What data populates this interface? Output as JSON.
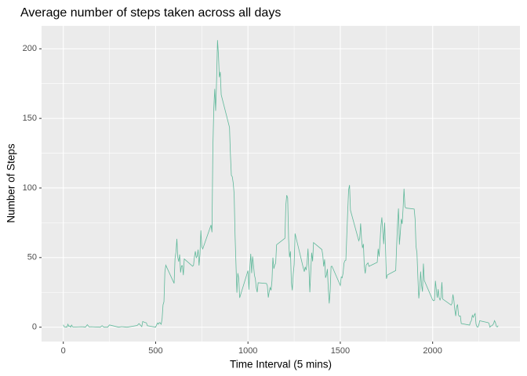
{
  "chart_data": {
    "type": "line",
    "title": "Average number of steps taken across all days",
    "x_label": "Time Interval (5 mins)",
    "y_label": "Number of Steps",
    "color": "#5fb89a",
    "grid": true,
    "xlim": [
      -117.75,
      2472.75
    ],
    "ylim": [
      -10.31,
      216.48
    ],
    "xticks": [
      0,
      500,
      1000,
      1500,
      2000
    ],
    "yticks": [
      0,
      50,
      100,
      150,
      200
    ],
    "xminor_ticks": [
      250,
      750,
      1250,
      1750,
      2250
    ],
    "yminor_ticks": [
      25,
      75,
      125,
      175
    ],
    "x": [
      0,
      5,
      10,
      15,
      20,
      25,
      30,
      35,
      40,
      45,
      50,
      55,
      100,
      110,
      120,
      130,
      140,
      150,
      200,
      210,
      220,
      230,
      240,
      250,
      300,
      315,
      330,
      345,
      400,
      410,
      425,
      430,
      440,
      450,
      455,
      500,
      505,
      510,
      515,
      520,
      525,
      530,
      535,
      540,
      545,
      550,
      555,
      600,
      605,
      610,
      615,
      620,
      625,
      630,
      635,
      640,
      645,
      650,
      655,
      700,
      705,
      710,
      715,
      720,
      725,
      730,
      735,
      740,
      745,
      750,
      755,
      800,
      805,
      810,
      815,
      820,
      825,
      830,
      835,
      840,
      845,
      850,
      855,
      900,
      905,
      910,
      915,
      920,
      925,
      930,
      935,
      940,
      945,
      950,
      955,
      1000,
      1005,
      1010,
      1015,
      1020,
      1025,
      1030,
      1035,
      1040,
      1045,
      1050,
      1055,
      1100,
      1105,
      1110,
      1115,
      1120,
      1125,
      1130,
      1135,
      1140,
      1145,
      1150,
      1155,
      1200,
      1205,
      1210,
      1215,
      1220,
      1225,
      1230,
      1235,
      1240,
      1245,
      1250,
      1255,
      1300,
      1305,
      1310,
      1315,
      1320,
      1325,
      1330,
      1335,
      1340,
      1345,
      1350,
      1355,
      1400,
      1405,
      1410,
      1415,
      1420,
      1425,
      1430,
      1435,
      1440,
      1445,
      1450,
      1455,
      1500,
      1505,
      1510,
      1515,
      1520,
      1525,
      1530,
      1535,
      1540,
      1545,
      1550,
      1555,
      1600,
      1605,
      1610,
      1615,
      1620,
      1625,
      1630,
      1635,
      1640,
      1645,
      1650,
      1655,
      1700,
      1705,
      1710,
      1715,
      1720,
      1725,
      1730,
      1735,
      1740,
      1745,
      1750,
      1755,
      1800,
      1805,
      1810,
      1815,
      1820,
      1825,
      1830,
      1835,
      1840,
      1845,
      1850,
      1855,
      1900,
      1905,
      1910,
      1915,
      1920,
      1925,
      1930,
      1935,
      1940,
      1945,
      1950,
      1955,
      2000,
      2005,
      2010,
      2015,
      2020,
      2025,
      2030,
      2035,
      2040,
      2045,
      2050,
      2055,
      2100,
      2105,
      2110,
      2115,
      2120,
      2125,
      2130,
      2135,
      2140,
      2145,
      2150,
      2155,
      2200,
      2205,
      2210,
      2215,
      2220,
      2225,
      2230,
      2235,
      2240,
      2245,
      2250,
      2255,
      2300,
      2305,
      2310,
      2315,
      2320,
      2325,
      2330,
      2335,
      2340,
      2345,
      2350,
      2355
    ],
    "values": [
      1.7,
      0.3,
      0.1,
      0.2,
      0.1,
      2.1,
      0.5,
      0.9,
      0,
      1.5,
      0.3,
      0.1,
      0.3,
      0.2,
      0,
      1.8,
      0.2,
      0.3,
      0,
      1.1,
      0,
      0,
      0,
      1.6,
      0,
      0.4,
      0.2,
      0,
      1.2,
      2.6,
      0.4,
      4.1,
      3.5,
      3.1,
      1.1,
      0,
      1.6,
      3,
      2.2,
      3.3,
      3,
      2.1,
      6.1,
      16,
      18.3,
      39.5,
      44.5,
      31.5,
      49.3,
      53.8,
      63.5,
      50,
      47.1,
      52.2,
      39.3,
      44,
      44.2,
      37.4,
      49,
      43.8,
      44.4,
      50.5,
      54.5,
      49.9,
      51,
      55.7,
      44.3,
      52.3,
      69.5,
      57.8,
      56.2,
      73.4,
      68.2,
      129.4,
      157.5,
      171.2,
      155.4,
      177.3,
      206.2,
      195.9,
      179.6,
      183.4,
      167,
      143.5,
      124,
      109.1,
      108.1,
      103.7,
      96,
      66.2,
      45.2,
      24.8,
      38.8,
      35,
      21.1,
      40.6,
      27,
      42.4,
      52.7,
      38.9,
      50.8,
      44.3,
      37.4,
      34.7,
      28.3,
      25.1,
      31.9,
      31.4,
      29.7,
      21.3,
      25.5,
      28.4,
      26.5,
      33.4,
      50,
      42,
      44.6,
      46,
      59.2,
      63.9,
      87.7,
      94.8,
      92.8,
      63.4,
      50.2,
      54.5,
      32.4,
      26.5,
      37.7,
      45.1,
      67.3,
      42.3,
      39.9,
      43.3,
      41,
      46.2,
      56.4,
      42.8,
      25.1,
      40,
      53.5,
      47.3,
      60.8,
      55.8,
      52,
      43.6,
      48.7,
      35.5,
      37.5,
      41.8,
      27.5,
      17.1,
      26.1,
      43.6,
      43.8,
      30,
      36.1,
      35.5,
      38.8,
      46,
      47.8,
      48.1,
      65.3,
      82.9,
      98.7,
      102.1,
      84,
      62.1,
      64.1,
      74.5,
      63.2,
      56.9,
      59.8,
      43.9,
      38.6,
      44.7,
      45.5,
      46.2,
      43.7,
      46.6,
      56.3,
      50.7,
      61.2,
      72.7,
      78.9,
      68.9,
      59.7,
      75.1,
      56.5,
      34.8,
      37.5,
      40.7,
      58,
      74.7,
      85.3,
      59.3,
      67.8,
      77.7,
      74.2,
      85.3,
      99.5,
      86.6,
      85.6,
      84.9,
      77.8,
      58,
      53.4,
      36.3,
      20.7,
      27.4,
      40,
      30.2,
      25.5,
      45.7,
      33.5,
      19.6,
      19,
      19.3,
      33.3,
      26.8,
      21.2,
      27.3,
      21.3,
      19.5,
      21.3,
      32.3,
      20.2,
      15.9,
      17.2,
      23.5,
      19.2,
      12.5,
      8,
      14.7,
      16.3,
      8.7,
      7.8,
      8.1,
      2.6,
      1.5,
      3.7,
      4.8,
      8.5,
      7.1,
      8.7,
      9.8,
      2.2,
      0.3,
      0.1,
      1.6,
      4.6,
      3.3,
      2.8,
      0,
      0.8,
      1,
      1.6,
      2.6,
      4.7,
      3.3,
      0.6,
      0.2,
      1.1
    ]
  }
}
